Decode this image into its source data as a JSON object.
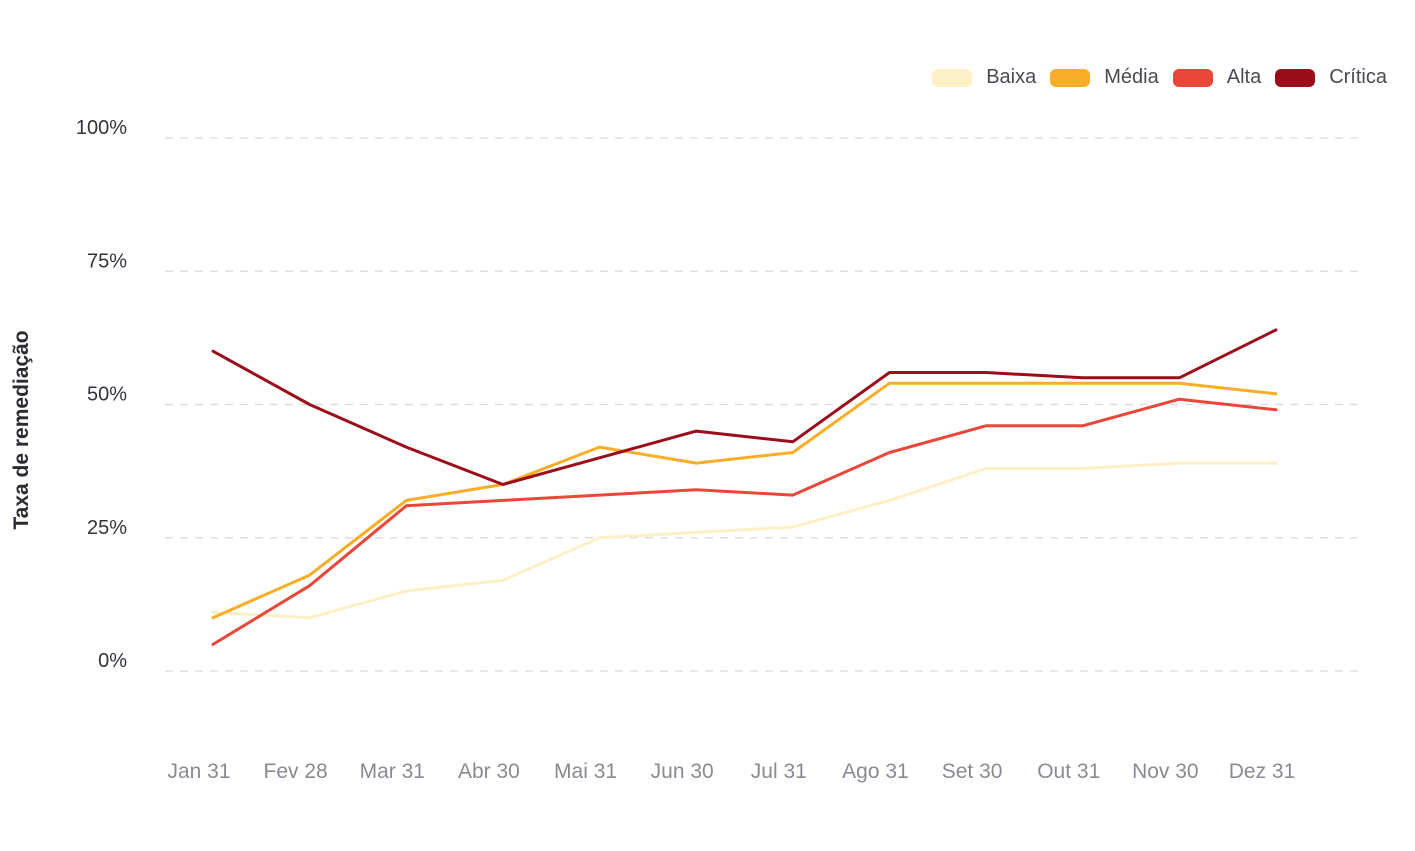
{
  "chart_data": {
    "type": "line",
    "title": "",
    "xlabel": "",
    "ylabel": "Taxa de remediação",
    "ylim": [
      0,
      100
    ],
    "yticks": [
      "0%",
      "25%",
      "50%",
      "75%",
      "100%"
    ],
    "ytick_values": [
      0,
      25,
      50,
      75,
      100
    ],
    "grid": true,
    "legend_position": "top-right",
    "categories": [
      "Jan 31",
      "Fev 28",
      "Mar 31",
      "Abr 30",
      "Mai 31",
      "Jun 30",
      "Jul 31",
      "Ago 31",
      "Set 30",
      "Out 31",
      "Nov 30",
      "Dez 31"
    ],
    "series": [
      {
        "name": "Baixa",
        "color": "#fdefc6",
        "values": [
          11,
          10,
          15,
          17,
          25,
          26,
          27,
          32,
          38,
          38,
          39,
          39
        ]
      },
      {
        "name": "Média",
        "color": "#f9ad28",
        "values": [
          10,
          18,
          32,
          35,
          42,
          39,
          41,
          54,
          54,
          54,
          54,
          52
        ]
      },
      {
        "name": "Alta",
        "color": "#e9473a",
        "values": [
          5,
          16,
          31,
          32,
          33,
          34,
          33,
          41,
          46,
          46,
          51,
          49
        ]
      },
      {
        "name": "Crítica",
        "color": "#9b0d1a",
        "values": [
          60,
          50,
          42,
          35,
          40,
          45,
          43,
          56,
          56,
          55,
          55,
          64
        ]
      }
    ]
  }
}
